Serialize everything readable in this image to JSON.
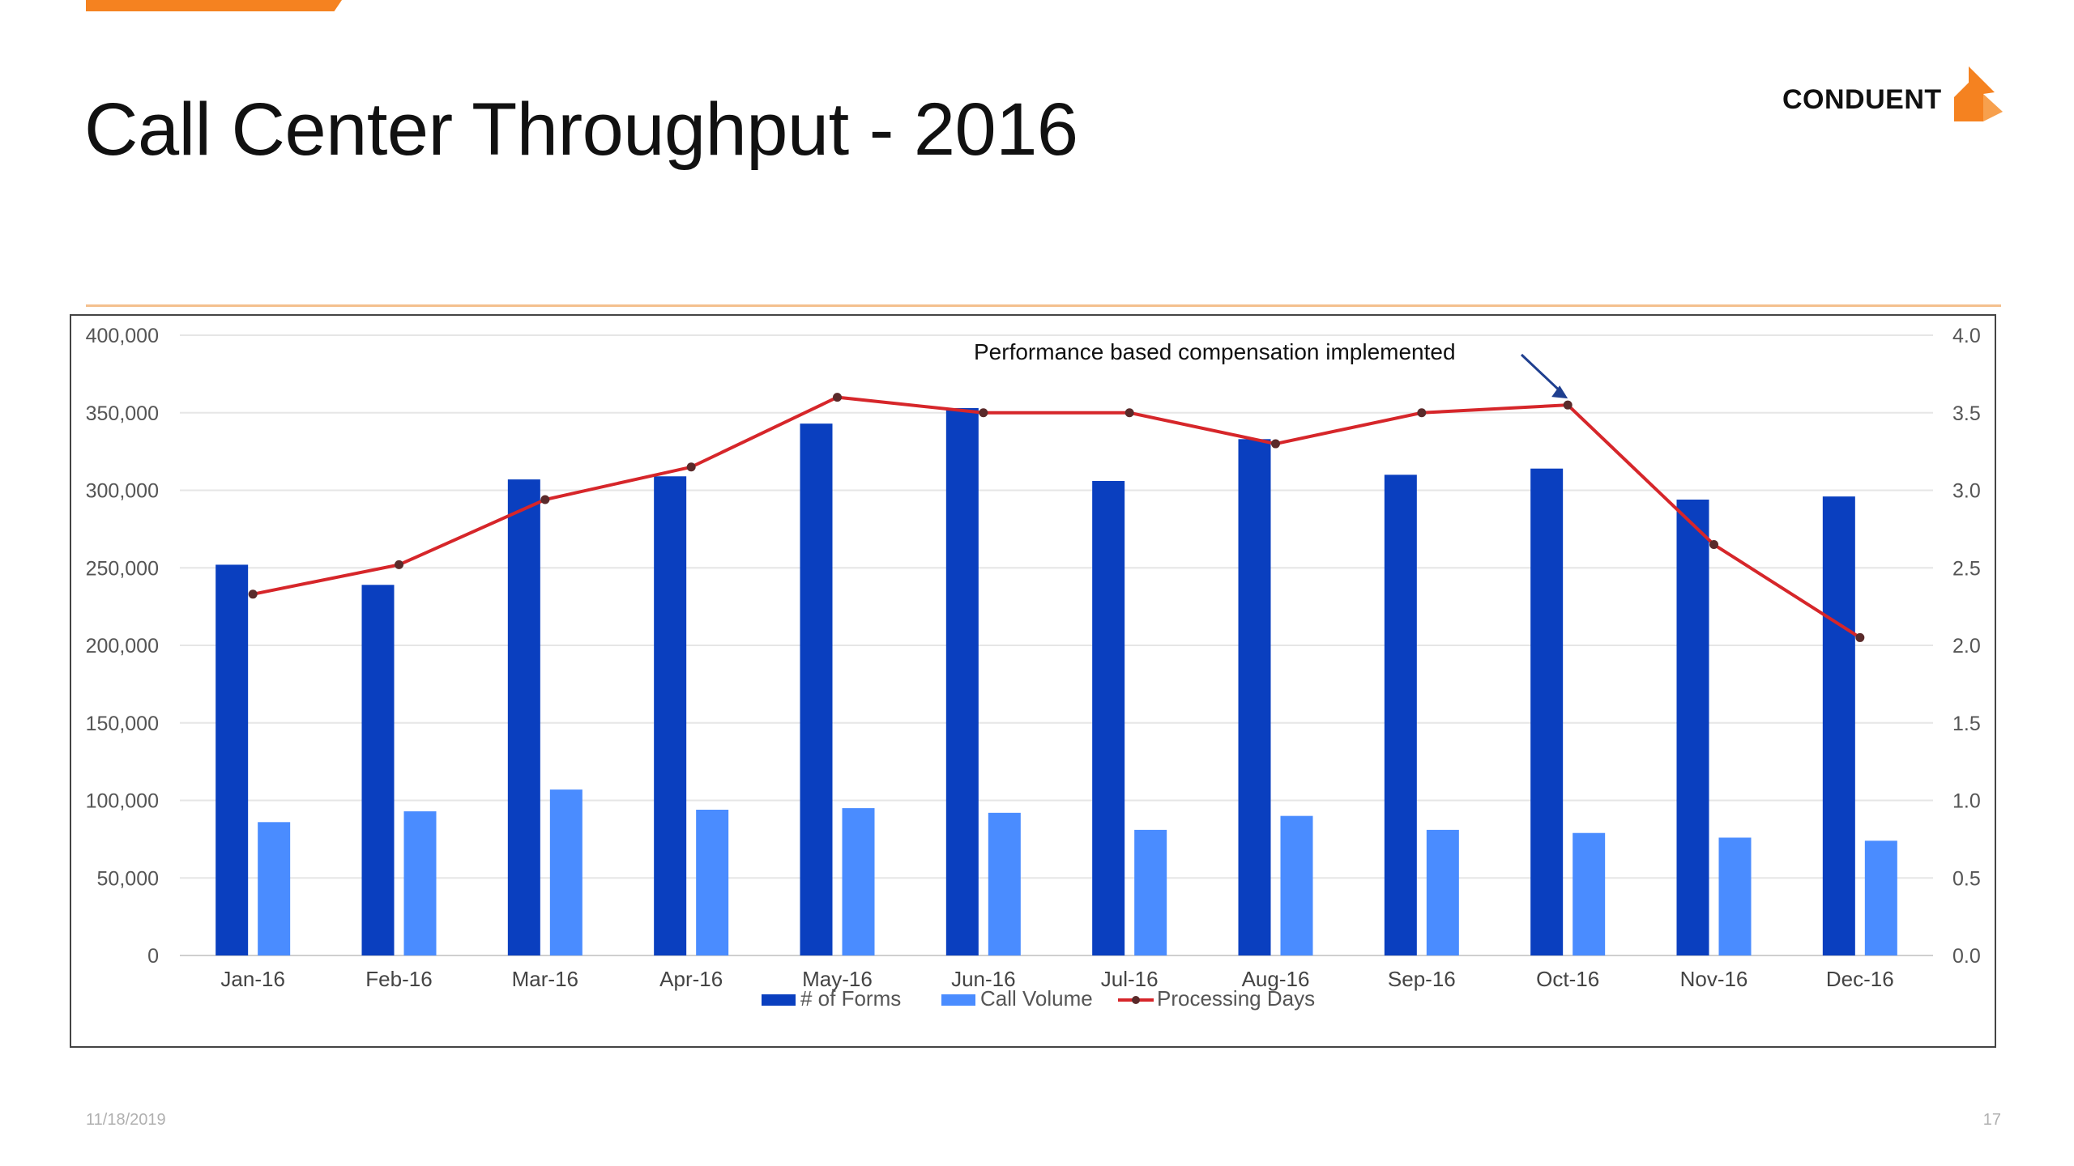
{
  "slide": {
    "title": "Call Center Throughput - 2016",
    "logo_text": "CONDUENT",
    "footer_date": "11/18/2019",
    "page_number": "17",
    "accent_color": "#f58220"
  },
  "chart_data": {
    "type": "bar",
    "categories": [
      "Jan-16",
      "Feb-16",
      "Mar-16",
      "Apr-16",
      "May-16",
      "Jun-16",
      "Jul-16",
      "Aug-16",
      "Sep-16",
      "Oct-16",
      "Nov-16",
      "Dec-16"
    ],
    "series": [
      {
        "name": "# of Forms",
        "type": "bar",
        "axis": "left",
        "color": "#0a3fbf",
        "values": [
          252000,
          239000,
          307000,
          309000,
          343000,
          353000,
          306000,
          333000,
          310000,
          314000,
          294000,
          296000
        ]
      },
      {
        "name": "Call Volume",
        "type": "bar",
        "axis": "right-none",
        "color": "#4a8cff",
        "values": [
          86000,
          93000,
          107000,
          94000,
          95000,
          92000,
          81000,
          90000,
          81000,
          79000,
          76000,
          74000
        ]
      },
      {
        "name": "Processing Days",
        "type": "line",
        "axis": "right",
        "color": "#d6262a",
        "values": [
          2.33,
          2.52,
          2.94,
          3.15,
          3.6,
          3.5,
          3.5,
          3.3,
          3.5,
          3.55,
          2.65,
          2.05
        ]
      }
    ],
    "y_left": {
      "min": 0,
      "max": 400000,
      "ticks": [
        "0",
        "50,000",
        "100,000",
        "150,000",
        "200,000",
        "250,000",
        "300,000",
        "350,000",
        "400,000"
      ]
    },
    "y_right": {
      "min": 0,
      "max": 4.0,
      "ticks": [
        "0.0",
        "0.5",
        "1.0",
        "1.5",
        "2.0",
        "2.5",
        "3.0",
        "3.5",
        "4.0"
      ]
    },
    "grid": true,
    "legend_position": "bottom",
    "annotation": {
      "text": "Performance based compensation implemented",
      "target_category": "Oct-16"
    }
  }
}
